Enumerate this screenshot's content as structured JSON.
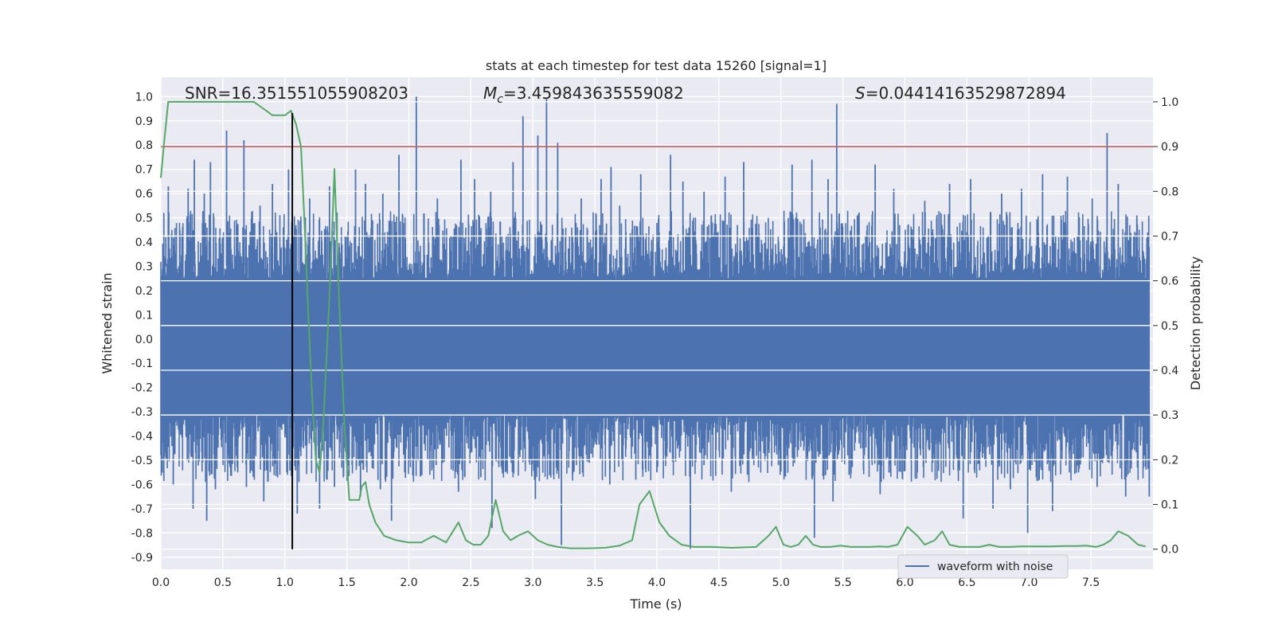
{
  "chart_data": {
    "type": "line",
    "title": "stats at each timestep for test data 15260 [signal=1]",
    "xlabel": "Time (s)",
    "ylabel": "Whitened strain",
    "y2label": "Detection probability",
    "xlim": [
      0.0,
      8.0
    ],
    "ylim": [
      -0.95,
      1.08
    ],
    "y2lim": [
      -0.045,
      1.055
    ],
    "xticks": [
      "0.0",
      "0.5",
      "1.0",
      "1.5",
      "2.0",
      "2.5",
      "3.0",
      "3.5",
      "4.0",
      "4.5",
      "5.0",
      "5.5",
      "6.0",
      "6.5",
      "7.0",
      "7.5"
    ],
    "yticks": [
      "1.0",
      "0.9",
      "0.8",
      "0.7",
      "0.6",
      "0.5",
      "0.4",
      "0.3",
      "0.2",
      "0.1",
      "0.0",
      "-0.1",
      "-0.2",
      "-0.3",
      "-0.4",
      "-0.5",
      "-0.6",
      "-0.7",
      "-0.8",
      "-0.9"
    ],
    "y2ticks": [
      "1.0",
      "0.9",
      "0.8",
      "0.7",
      "0.6",
      "0.5",
      "0.4",
      "0.3",
      "0.2",
      "0.1",
      "0.0"
    ],
    "annotations": {
      "snr": "SNR=16.351551055908203",
      "mc_symbol": "M",
      "mc_sub": "c",
      "mc_value": "=3.459843635559082",
      "s_symbol": "S",
      "s_value": "=0.04414163529872894"
    },
    "legend": {
      "label": "waveform with noise",
      "placement": "lower right"
    },
    "threshold_line": {
      "y2": 0.9,
      "color": "#c44e52"
    },
    "marker_line": {
      "x": 1.06,
      "color": "#000000"
    },
    "series": [
      {
        "name": "waveform with noise",
        "axis": "left",
        "color": "#4c72b0",
        "style": "dense noise, bulk within ±0.30, peaks up to ~1.0",
        "spikes": [
          [
            0.04,
            0.42
          ],
          [
            0.06,
            0.63
          ],
          [
            0.22,
            0.62
          ],
          [
            0.27,
            0.74
          ],
          [
            0.35,
            0.6
          ],
          [
            0.4,
            0.73
          ],
          [
            0.53,
            0.86
          ],
          [
            0.67,
            0.82
          ],
          [
            0.8,
            0.55
          ],
          [
            0.9,
            0.64
          ],
          [
            1.03,
            0.7
          ],
          [
            1.2,
            0.58
          ],
          [
            1.36,
            0.63
          ],
          [
            1.57,
            0.7
          ],
          [
            1.65,
            0.64
          ],
          [
            1.79,
            0.6
          ],
          [
            1.92,
            0.76
          ],
          [
            2.06,
            1.0
          ],
          [
            2.23,
            0.58
          ],
          [
            2.42,
            0.74
          ],
          [
            2.53,
            0.66
          ],
          [
            2.66,
            0.61
          ],
          [
            2.84,
            0.73
          ],
          [
            2.92,
            0.92
          ],
          [
            3.04,
            0.84
          ],
          [
            3.11,
            0.99
          ],
          [
            3.2,
            0.81
          ],
          [
            3.39,
            0.58
          ],
          [
            3.55,
            0.66
          ],
          [
            3.63,
            0.71
          ],
          [
            3.7,
            0.55
          ],
          [
            3.87,
            0.68
          ],
          [
            4.11,
            0.76
          ],
          [
            4.21,
            0.65
          ],
          [
            4.38,
            0.61
          ],
          [
            4.55,
            0.67
          ],
          [
            4.7,
            0.73
          ],
          [
            5.09,
            0.72
          ],
          [
            5.25,
            0.74
          ],
          [
            5.38,
            0.66
          ],
          [
            5.45,
            0.97
          ],
          [
            5.76,
            0.72
          ],
          [
            5.91,
            0.62
          ],
          [
            6.16,
            0.57
          ],
          [
            6.36,
            0.64
          ],
          [
            6.53,
            0.66
          ],
          [
            6.78,
            0.6
          ],
          [
            6.94,
            0.62
          ],
          [
            7.11,
            0.68
          ],
          [
            7.31,
            0.67
          ],
          [
            7.51,
            0.58
          ],
          [
            7.63,
            0.85
          ],
          [
            7.72,
            0.64
          ],
          [
            7.87,
            0.51
          ],
          [
            0.05,
            -0.5
          ],
          [
            0.1,
            -0.6
          ],
          [
            0.26,
            -0.7
          ],
          [
            0.37,
            -0.75
          ],
          [
            0.44,
            -0.62
          ],
          [
            0.62,
            -0.55
          ],
          [
            0.69,
            -0.61
          ],
          [
            0.83,
            -0.67
          ],
          [
            1.1,
            -0.72
          ],
          [
            1.28,
            -0.7
          ],
          [
            1.4,
            -0.61
          ],
          [
            1.61,
            -0.65
          ],
          [
            1.77,
            -0.62
          ],
          [
            1.86,
            -0.75
          ],
          [
            2.22,
            -0.52
          ],
          [
            2.4,
            -0.63
          ],
          [
            2.58,
            -0.57
          ],
          [
            2.67,
            -0.78
          ],
          [
            3.02,
            -0.66
          ],
          [
            3.23,
            -0.85
          ],
          [
            3.32,
            -0.56
          ],
          [
            3.62,
            -0.6
          ],
          [
            3.83,
            -0.58
          ],
          [
            4.0,
            -0.55
          ],
          [
            4.27,
            -0.87
          ],
          [
            4.38,
            -0.52
          ],
          [
            4.6,
            -0.63
          ],
          [
            4.73,
            -0.56
          ],
          [
            4.98,
            -0.52
          ],
          [
            5.27,
            -0.82
          ],
          [
            5.42,
            -0.67
          ],
          [
            5.55,
            -0.56
          ],
          [
            5.8,
            -0.64
          ],
          [
            6.1,
            -0.55
          ],
          [
            6.47,
            -0.74
          ],
          [
            6.71,
            -0.7
          ],
          [
            6.85,
            -0.62
          ],
          [
            6.99,
            -0.8
          ],
          [
            7.19,
            -0.71
          ],
          [
            7.4,
            -0.55
          ],
          [
            7.55,
            -0.61
          ],
          [
            7.78,
            -0.65
          ],
          [
            7.97,
            -0.65
          ]
        ]
      },
      {
        "name": "",
        "axis": "right",
        "color": "#55a868",
        "x": [
          0.0,
          0.03,
          0.06,
          0.12,
          0.2,
          0.35,
          0.5,
          0.65,
          0.75,
          0.8,
          0.85,
          0.9,
          0.95,
          1.0,
          1.05,
          1.09,
          1.13,
          1.16,
          1.19,
          1.22,
          1.25,
          1.28,
          1.31,
          1.34,
          1.37,
          1.4,
          1.44,
          1.48,
          1.52,
          1.55,
          1.6,
          1.62,
          1.65,
          1.68,
          1.73,
          1.8,
          1.9,
          2.0,
          2.1,
          2.2,
          2.3,
          2.4,
          2.46,
          2.52,
          2.58,
          2.64,
          2.7,
          2.76,
          2.82,
          2.88,
          2.96,
          3.04,
          3.12,
          3.2,
          3.3,
          3.45,
          3.58,
          3.7,
          3.8,
          3.86,
          3.94,
          4.02,
          4.1,
          4.2,
          4.3,
          4.45,
          4.6,
          4.8,
          4.9,
          4.96,
          5.02,
          5.08,
          5.14,
          5.2,
          5.26,
          5.32,
          5.4,
          5.48,
          5.56,
          5.64,
          5.72,
          5.8,
          5.86,
          5.94,
          6.02,
          6.1,
          6.16,
          6.24,
          6.3,
          6.36,
          6.44,
          6.52,
          6.6,
          6.68,
          6.76,
          6.84,
          6.92,
          7.0,
          7.08,
          7.18,
          7.28,
          7.38,
          7.46,
          7.54,
          7.6,
          7.66,
          7.72,
          7.8,
          7.88,
          7.94
        ],
        "values": [
          0.83,
          0.92,
          1.0,
          1.0,
          1.0,
          1.0,
          1.0,
          1.0,
          1.0,
          0.99,
          0.98,
          0.97,
          0.97,
          0.97,
          0.98,
          0.95,
          0.9,
          0.72,
          0.52,
          0.34,
          0.2,
          0.17,
          0.28,
          0.45,
          0.63,
          0.85,
          0.54,
          0.28,
          0.11,
          0.11,
          0.11,
          0.14,
          0.15,
          0.1,
          0.06,
          0.03,
          0.02,
          0.015,
          0.015,
          0.03,
          0.015,
          0.06,
          0.02,
          0.01,
          0.01,
          0.03,
          0.11,
          0.04,
          0.02,
          0.03,
          0.04,
          0.02,
          0.01,
          0.005,
          0.002,
          0.002,
          0.003,
          0.008,
          0.02,
          0.1,
          0.13,
          0.06,
          0.03,
          0.01,
          0.005,
          0.005,
          0.003,
          0.005,
          0.03,
          0.05,
          0.01,
          0.005,
          0.01,
          0.03,
          0.01,
          0.005,
          0.005,
          0.008,
          0.005,
          0.005,
          0.005,
          0.006,
          0.005,
          0.01,
          0.05,
          0.03,
          0.01,
          0.02,
          0.04,
          0.01,
          0.005,
          0.005,
          0.005,
          0.01,
          0.005,
          0.005,
          0.006,
          0.006,
          0.006,
          0.006,
          0.007,
          0.007,
          0.008,
          0.005,
          0.01,
          0.02,
          0.04,
          0.03,
          0.01,
          0.006
        ]
      }
    ]
  }
}
